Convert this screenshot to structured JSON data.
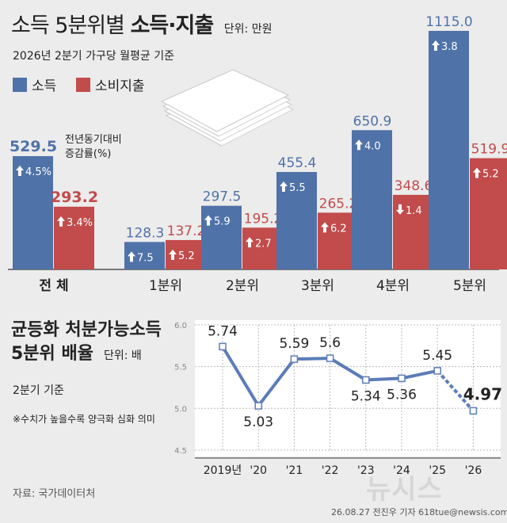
{
  "title": {
    "main_plain": "소득 5분위별",
    "main_bold": "소득·지출",
    "unit": "단위: 만원"
  },
  "subtitle": "2026년 2분기 가구당 월평균 기준",
  "legend": {
    "income": "소득",
    "spending": "소비지출"
  },
  "yoy_note_line1": "전년동기대비",
  "yoy_note_line2": "증감률(%)",
  "colors": {
    "income": "#4f72a8",
    "spending": "#c24b4b",
    "line": "#5b7cb8",
    "background": "#ececec"
  },
  "chart_data": [
    {
      "type": "bar",
      "title": "소득 5분위별 소득·지출",
      "unit": "단위: 만원",
      "categories": [
        "전 체",
        "1분위",
        "2분위",
        "3분위",
        "4분위",
        "5분위"
      ],
      "series": [
        {
          "name": "소득",
          "values": [
            529.5,
            128.3,
            297.5,
            455.4,
            650.9,
            1115.0
          ],
          "labels": [
            "529.5",
            "128.3",
            "297.5",
            "455.4",
            "650.9",
            "1115.0"
          ],
          "yoy": [
            "4.5%",
            "7.5",
            "5.9",
            "5.5",
            "4.0",
            "3.8"
          ],
          "yoy_dir": [
            "up",
            "up",
            "up",
            "up",
            "up",
            "up"
          ]
        },
        {
          "name": "소비지출",
          "values": [
            293.2,
            137.2,
            195.2,
            265.2,
            348.6,
            519.9
          ],
          "labels": [
            "293.2",
            "137.2",
            "195.2",
            "265.2",
            "348.6",
            "519.9"
          ],
          "yoy": [
            "3.4%",
            "5.2",
            "2.7",
            "6.2",
            "1.4",
            "5.2"
          ],
          "yoy_dir": [
            "up",
            "up",
            "up",
            "up",
            "down",
            "up"
          ]
        }
      ]
    },
    {
      "type": "line",
      "title": "균등화 처분가능소득 5분위 배율",
      "unit": "단위: 배",
      "x": [
        "2019년",
        "'20",
        "'21",
        "'22",
        "'23",
        "'24",
        "'25",
        "'26"
      ],
      "y": [
        5.74,
        5.03,
        5.59,
        5.6,
        5.34,
        5.36,
        5.45,
        4.97
      ],
      "labels": [
        "5.74",
        "5.03",
        "5.59",
        "5.6",
        "5.34",
        "5.36",
        "5.45",
        "4.97"
      ],
      "yticks": [
        "4.5",
        "5.0",
        "5.5",
        "6.0"
      ],
      "ylim": [
        4.5,
        6.0
      ],
      "grid": true
    }
  ],
  "section2": {
    "title_line1": "균등화 처분가능소득",
    "title_line2": "5분위 배율",
    "unit": "단위: 배",
    "sub": "2분기 기준",
    "note": "※수치가 높을수록 양극화 심화 의미"
  },
  "source": "자료: 국가데이터처",
  "credit": "26.08.27 전진우 기자 618tue@newsis.com",
  "watermark": "뉴시스"
}
